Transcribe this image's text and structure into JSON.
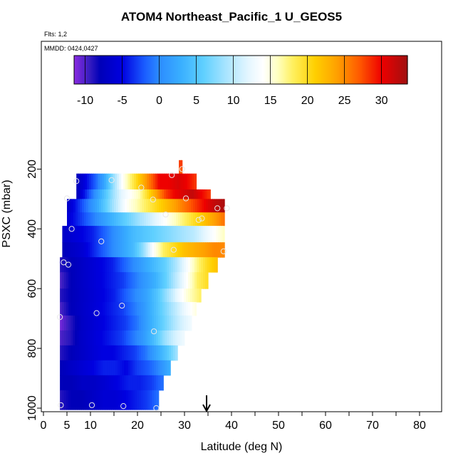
{
  "flights_label": "Flts: 1,2",
  "chart_data": {
    "type": "heatmap",
    "title": "ATOM4 Northeast_Pacific_1 U_GEOS5",
    "subtitle": "MMDD: 0424,0427",
    "xlabel": "Latitude (deg N)",
    "ylabel": "PSXC (mbar)",
    "xlim": [
      0,
      84
    ],
    "ylim": [
      1005,
      30
    ],
    "x_ticks": [
      0,
      5,
      10,
      20,
      30,
      40,
      50,
      60,
      70,
      80
    ],
    "y_ticks": [
      200,
      400,
      600,
      800,
      1000
    ],
    "colorbar": {
      "range": [
        -11.5,
        33.5
      ],
      "ticks": [
        -10,
        -5,
        0,
        5,
        10,
        15,
        20,
        25,
        30
      ],
      "stops": [
        [
          -11.5,
          "#8a2be2"
        ],
        [
          -9.5,
          "#3a1ec0"
        ],
        [
          -8,
          "#0000b8"
        ],
        [
          -5,
          "#0000e0"
        ],
        [
          -2,
          "#1a5cff"
        ],
        [
          0,
          "#2c8cff"
        ],
        [
          3,
          "#3ab0ff"
        ],
        [
          6,
          "#60d0ff"
        ],
        [
          9,
          "#a8e4ff"
        ],
        [
          12,
          "#e4f6ff"
        ],
        [
          14,
          "#ffffff"
        ],
        [
          16,
          "#ffffc0"
        ],
        [
          18,
          "#fff060"
        ],
        [
          21,
          "#ffd000"
        ],
        [
          24,
          "#ffa000"
        ],
        [
          27,
          "#ff5a00"
        ],
        [
          30,
          "#ee0000"
        ],
        [
          33.5,
          "#a01010"
        ]
      ]
    },
    "marker_latitude": 34.7,
    "rows": [
      {
        "pmin": 170,
        "pmax": 195,
        "lat_start": 28.8,
        "lat_end": 29.5,
        "values": [
          28
        ]
      },
      {
        "pmin": 195,
        "pmax": 215,
        "lat_start": 28.8,
        "lat_end": 29.5,
        "values": [
          27
        ]
      },
      {
        "pmin": 215,
        "pmax": 268,
        "lat_start": 7,
        "lat_end": 32.5,
        "values": [
          -8,
          -5,
          -2,
          2,
          8,
          14,
          18,
          22,
          26,
          30,
          30,
          31,
          30,
          28
        ]
      },
      {
        "pmin": 268,
        "pmax": 300,
        "lat_start": 7,
        "lat_end": 35.5,
        "values": [
          -8,
          -4,
          0,
          4,
          8,
          12,
          14,
          16,
          20,
          24,
          28,
          30,
          31,
          32,
          30,
          28
        ]
      },
      {
        "pmin": 300,
        "pmax": 345,
        "lat_start": 5,
        "lat_end": 38.5,
        "values": [
          -7,
          -4,
          -1,
          2,
          6,
          10,
          14,
          16,
          18,
          20,
          22,
          24,
          26,
          28,
          30,
          32,
          33
        ]
      },
      {
        "pmin": 345,
        "pmax": 390,
        "lat_start": 5,
        "lat_end": 38.5,
        "values": [
          -6,
          -4,
          -2,
          0,
          2,
          4,
          6,
          8,
          10,
          12,
          14,
          16,
          18,
          20,
          22,
          24,
          26
        ]
      },
      {
        "pmin": 390,
        "pmax": 445,
        "lat_start": 4,
        "lat_end": 38.5,
        "values": [
          -7,
          -6,
          -5,
          -4,
          -2,
          0,
          2,
          4,
          5,
          6,
          7,
          8,
          9,
          10,
          12,
          14,
          16
        ]
      },
      {
        "pmin": 445,
        "pmax": 495,
        "lat_start": 4,
        "lat_end": 38.5,
        "values": [
          -8,
          -7,
          -6,
          -4,
          -2,
          0,
          2,
          4,
          8,
          14,
          18,
          20,
          22,
          23,
          24,
          25,
          25
        ]
      },
      {
        "pmin": 495,
        "pmax": 545,
        "lat_start": 3.5,
        "lat_end": 37,
        "values": [
          -9,
          -8,
          -7,
          -6,
          -5,
          -4,
          -2,
          0,
          2,
          4,
          6,
          9,
          13,
          17,
          20,
          22
        ]
      },
      {
        "pmin": 545,
        "pmax": 600,
        "lat_start": 3.5,
        "lat_end": 35,
        "values": [
          -10,
          -8,
          -7,
          -6,
          -5,
          -4,
          -3,
          -1,
          1,
          3,
          6,
          10,
          14,
          18,
          20
        ]
      },
      {
        "pmin": 600,
        "pmax": 645,
        "lat_start": 3.5,
        "lat_end": 33.5,
        "values": [
          -9,
          -8,
          -7,
          -6,
          -5,
          -4,
          -2,
          0,
          2,
          5,
          9,
          13,
          16,
          18
        ]
      },
      {
        "pmin": 645,
        "pmax": 690,
        "lat_start": 3.5,
        "lat_end": 32.5,
        "values": [
          -10,
          -8,
          -7,
          -6,
          -5,
          -4,
          -3,
          -1,
          1,
          4,
          7,
          10,
          13,
          15
        ]
      },
      {
        "pmin": 690,
        "pmax": 740,
        "lat_start": 3.5,
        "lat_end": 31.5,
        "values": [
          -11,
          -9,
          -7,
          -6,
          -5,
          -4,
          -3,
          -1,
          2,
          5,
          8,
          11,
          13
        ]
      },
      {
        "pmin": 740,
        "pmax": 790,
        "lat_start": 3.5,
        "lat_end": 30,
        "values": [
          -10,
          -9,
          -7,
          -6,
          -5,
          -4,
          -3,
          -1,
          1,
          4,
          8,
          11,
          13
        ]
      },
      {
        "pmin": 790,
        "pmax": 840,
        "lat_start": 3.5,
        "lat_end": 28.5,
        "values": [
          -9,
          -8,
          -7,
          -6,
          -5,
          -5,
          -4,
          -3,
          -1,
          2,
          5,
          9
        ]
      },
      {
        "pmin": 840,
        "pmax": 890,
        "lat_start": 3.5,
        "lat_end": 27,
        "values": [
          -8,
          -7,
          -6,
          -5,
          -4,
          -4,
          -5,
          -3,
          -2,
          0,
          3
        ]
      },
      {
        "pmin": 890,
        "pmax": 940,
        "lat_start": 3.5,
        "lat_end": 25.5,
        "values": [
          -8,
          -8,
          -7,
          -7,
          -6,
          -5,
          -4,
          -4,
          -3,
          -1
        ]
      },
      {
        "pmin": 940,
        "pmax": 1005,
        "lat_start": 3.5,
        "lat_end": 24.5,
        "values": [
          -9,
          -8,
          -8,
          -7,
          -6,
          -6,
          -5,
          -4,
          -3,
          -1
        ]
      }
    ],
    "points": [
      [
        29.5,
        200
      ],
      [
        27.3,
        220
      ],
      [
        7,
        240
      ],
      [
        14.5,
        237
      ],
      [
        20.8,
        262
      ],
      [
        5,
        298
      ],
      [
        23.3,
        302
      ],
      [
        30.3,
        298
      ],
      [
        37,
        331
      ],
      [
        39,
        331
      ],
      [
        26,
        352
      ],
      [
        33,
        370
      ],
      [
        33.7,
        365
      ],
      [
        6,
        400
      ],
      [
        12.3,
        442
      ],
      [
        27.7,
        470
      ],
      [
        38.3,
        475
      ],
      [
        4.3,
        512
      ],
      [
        5.3,
        520
      ],
      [
        16.7,
        657
      ],
      [
        11.3,
        682
      ],
      [
        3.5,
        695
      ],
      [
        23.5,
        743
      ],
      [
        3.7,
        990
      ],
      [
        10.3,
        990
      ],
      [
        17,
        993
      ],
      [
        24,
        1000
      ]
    ]
  }
}
